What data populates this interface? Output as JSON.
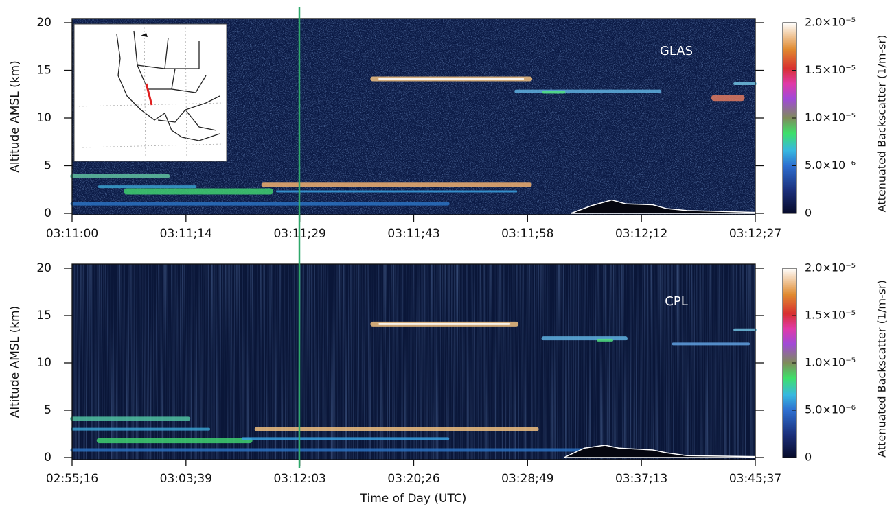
{
  "chart_data": [
    {
      "type": "curtain",
      "label": "GLAS",
      "ylabel": "Altitude AMSL (km)",
      "categories": [
        "03:11:00",
        "03:11;14",
        "03:11;29",
        "03:11;43",
        "03:11;58",
        "03:12;12",
        "03:12;27"
      ],
      "ylim": [
        0,
        20
      ],
      "yticks": [
        0,
        5,
        10,
        15,
        20
      ],
      "colorbar": {
        "label": "Attenuated Backscatter (1/m-sr)",
        "clim": [
          0,
          2e-05
        ],
        "ticks": [
          {
            "value": 0,
            "label": "0"
          },
          {
            "value": 5e-06,
            "label": "5.0×10⁻⁶"
          },
          {
            "value": 1e-05,
            "label": "1.0×10⁻⁵"
          },
          {
            "value": 1.5e-05,
            "label": "1.5×10⁻⁵"
          },
          {
            "value": 2e-05,
            "label": "2.0×10⁻⁵"
          }
        ]
      }
    },
    {
      "type": "curtain",
      "label": "CPL",
      "ylabel": "Altitude AMSL (km)",
      "xlabel": "Time of Day (UTC)",
      "categories": [
        "02:55;16",
        "03:03;39",
        "03:12:03",
        "03:20;26",
        "03:28;49",
        "03:37;13",
        "03:45;37"
      ],
      "ylim": [
        0,
        20
      ],
      "yticks": [
        0,
        5,
        10,
        15,
        20
      ],
      "colorbar": {
        "label": "Attenuated Backscatter (1/m-sr)",
        "clim": [
          0,
          2e-05
        ],
        "ticks": [
          {
            "value": 0,
            "label": "0"
          },
          {
            "value": 5e-06,
            "label": "5.0×10⁻⁶"
          },
          {
            "value": 1e-05,
            "label": "1.0×10⁻⁵"
          },
          {
            "value": 1.5e-05,
            "label": "1.5×10⁻⁵"
          },
          {
            "value": 2e-05,
            "label": "2.0×10⁻⁵"
          }
        ]
      }
    }
  ]
}
